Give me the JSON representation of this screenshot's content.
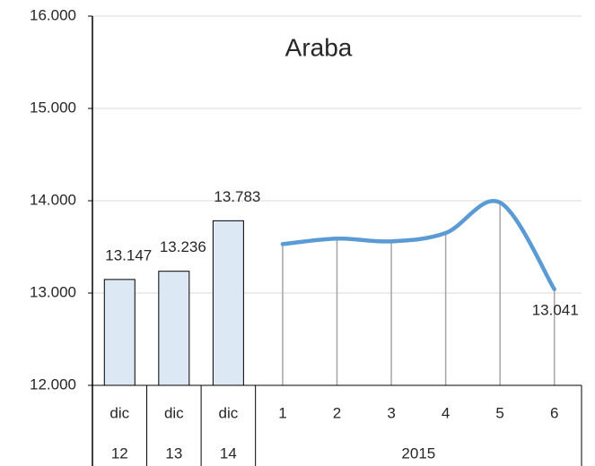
{
  "chart_data": {
    "type": "combo",
    "title": "Araba",
    "categories": [
      "dic",
      "dic",
      "dic",
      "1",
      "2",
      "3",
      "4",
      "5",
      "6"
    ],
    "groups": [
      {
        "label": "12",
        "count": 1
      },
      {
        "label": "13",
        "count": 1
      },
      {
        "label": "14",
        "count": 1
      },
      {
        "label": "2015",
        "count": 6
      }
    ],
    "series": [
      {
        "type": "bar",
        "color": "#dde8f5",
        "values": [
          13147,
          13236,
          13783,
          null,
          null,
          null,
          null,
          null,
          null
        ],
        "value_labels": [
          "13.147",
          "13.236",
          "13.783",
          null,
          null,
          null,
          null,
          null,
          null
        ]
      },
      {
        "type": "line",
        "color": "#5b9bd5",
        "values": [
          null,
          null,
          null,
          13530,
          13590,
          13560,
          13650,
          13980,
          13041
        ],
        "value_labels": [
          null,
          null,
          null,
          null,
          null,
          null,
          null,
          null,
          "13.041"
        ]
      }
    ],
    "ylim": [
      12000,
      16000
    ],
    "yticks": [
      {
        "value": 12000,
        "label": "12.000"
      },
      {
        "value": 13000,
        "label": "13.000"
      },
      {
        "value": 14000,
        "label": "14.000"
      },
      {
        "value": 15000,
        "label": "15.000"
      },
      {
        "value": 16000,
        "label": "16.000"
      }
    ],
    "grid": true
  }
}
